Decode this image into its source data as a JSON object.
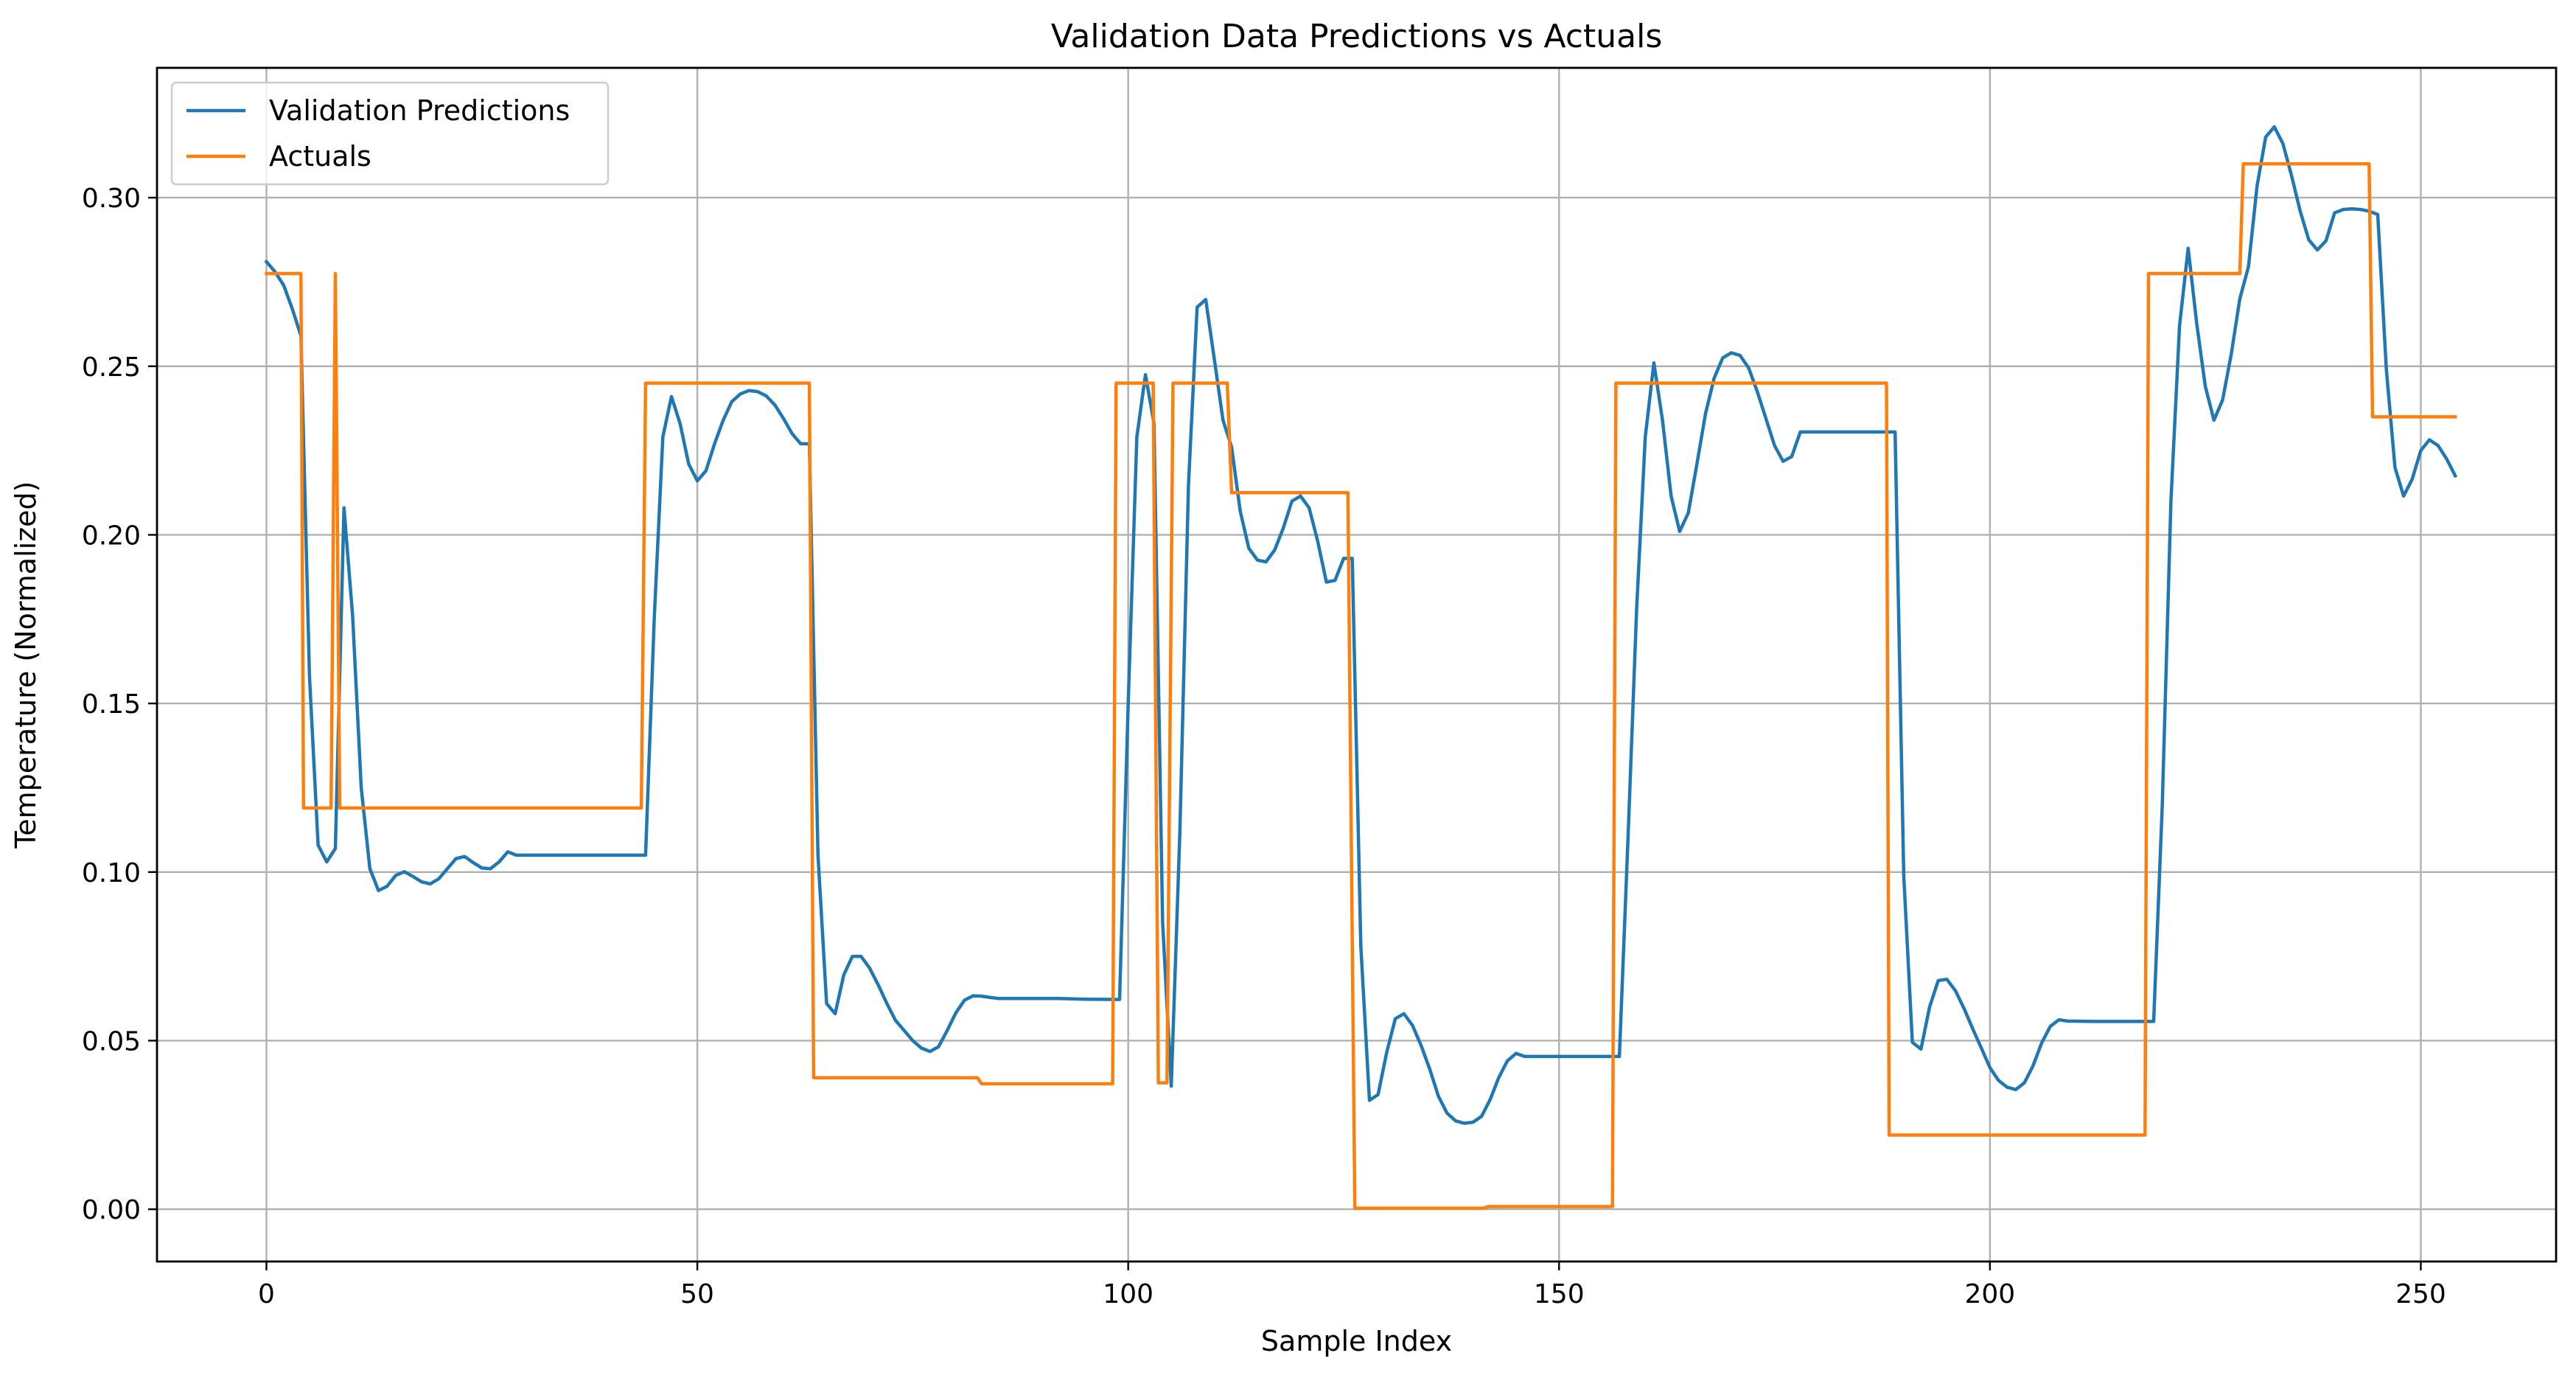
{
  "chart_data": {
    "type": "line",
    "title": "Validation Data Predictions vs Actuals",
    "xlabel": "Sample Index",
    "ylabel": "Temperature (Normalized)",
    "xlim": [
      -12.7,
      265.7
    ],
    "ylim": [
      -0.0155,
      0.3385
    ],
    "xticks": [
      0,
      50,
      100,
      150,
      200,
      250
    ],
    "xtick_labels": [
      "0",
      "50",
      "100",
      "150",
      "200",
      "250"
    ],
    "yticks": [
      0.0,
      0.05,
      0.1,
      0.15,
      0.2,
      0.25,
      0.3
    ],
    "ytick_labels": [
      "0.00",
      "0.05",
      "0.10",
      "0.15",
      "0.20",
      "0.25",
      "0.30"
    ],
    "grid": true,
    "legend_position": "top-left",
    "series": [
      {
        "name": "Validation Predictions",
        "color": "#1f77b4",
        "points": [
          [
            0,
            0.281
          ],
          [
            1,
            0.278
          ],
          [
            2,
            0.274
          ],
          [
            3,
            0.267
          ],
          [
            4,
            0.259
          ],
          [
            5,
            0.158
          ],
          [
            6,
            0.108
          ],
          [
            7,
            0.103
          ],
          [
            8,
            0.107
          ],
          [
            9,
            0.208
          ],
          [
            10,
            0.176
          ],
          [
            11,
            0.125
          ],
          [
            12,
            0.101
          ],
          [
            13,
            0.0945
          ],
          [
            14,
            0.0958
          ],
          [
            15,
            0.099
          ],
          [
            16,
            0.1001
          ],
          [
            17,
            0.0987
          ],
          [
            18,
            0.0971
          ],
          [
            19,
            0.0965
          ],
          [
            20,
            0.098
          ],
          [
            21,
            0.101
          ],
          [
            22,
            0.104
          ],
          [
            23,
            0.1046
          ],
          [
            24,
            0.1028
          ],
          [
            25,
            0.1012
          ],
          [
            26,
            0.101
          ],
          [
            27,
            0.103
          ],
          [
            28,
            0.106
          ],
          [
            29,
            0.105
          ],
          [
            30,
            0.105
          ],
          [
            35,
            0.105
          ],
          [
            40,
            0.105
          ],
          [
            44,
            0.105
          ],
          [
            45,
            0.175
          ],
          [
            46,
            0.229
          ],
          [
            47,
            0.241
          ],
          [
            48,
            0.233
          ],
          [
            49,
            0.221
          ],
          [
            50,
            0.216
          ],
          [
            51,
            0.219
          ],
          [
            52,
            0.227
          ],
          [
            53,
            0.234
          ],
          [
            54,
            0.2395
          ],
          [
            55,
            0.2418
          ],
          [
            56,
            0.2428
          ],
          [
            57,
            0.2425
          ],
          [
            58,
            0.2412
          ],
          [
            59,
            0.2385
          ],
          [
            60,
            0.2345
          ],
          [
            61,
            0.23
          ],
          [
            62,
            0.227
          ],
          [
            63,
            0.227
          ],
          [
            64,
            0.105
          ],
          [
            65,
            0.061
          ],
          [
            66,
            0.058
          ],
          [
            67,
            0.0695
          ],
          [
            68,
            0.075
          ],
          [
            69,
            0.075
          ],
          [
            70,
            0.0715
          ],
          [
            71,
            0.0665
          ],
          [
            72,
            0.061
          ],
          [
            73,
            0.056
          ],
          [
            74,
            0.053
          ],
          [
            75,
            0.05
          ],
          [
            76,
            0.0478
          ],
          [
            77,
            0.0468
          ],
          [
            78,
            0.0482
          ],
          [
            79,
            0.053
          ],
          [
            80,
            0.0582
          ],
          [
            81,
            0.062
          ],
          [
            82,
            0.0633
          ],
          [
            83,
            0.0632
          ],
          [
            84,
            0.0628
          ],
          [
            85,
            0.0625
          ],
          [
            88,
            0.0625
          ],
          [
            92,
            0.0625
          ],
          [
            95,
            0.0623
          ],
          [
            99,
            0.0622
          ],
          [
            100,
            0.15
          ],
          [
            101,
            0.229
          ],
          [
            102,
            0.2475
          ],
          [
            103,
            0.233
          ],
          [
            104,
            0.085
          ],
          [
            105,
            0.0365
          ],
          [
            106,
            0.112
          ],
          [
            107,
            0.215
          ],
          [
            108,
            0.2675
          ],
          [
            109,
            0.2698
          ],
          [
            110,
            0.252
          ],
          [
            111,
            0.234
          ],
          [
            112,
            0.226
          ],
          [
            113,
            0.207
          ],
          [
            114,
            0.196
          ],
          [
            115,
            0.1925
          ],
          [
            116,
            0.192
          ],
          [
            117,
            0.1955
          ],
          [
            118,
            0.202
          ],
          [
            119,
            0.21
          ],
          [
            120,
            0.2115
          ],
          [
            121,
            0.208
          ],
          [
            122,
            0.198
          ],
          [
            123,
            0.186
          ],
          [
            124,
            0.1865
          ],
          [
            125,
            0.193
          ],
          [
            126,
            0.193
          ],
          [
            127,
            0.078
          ],
          [
            128,
            0.0323
          ],
          [
            129,
            0.034
          ],
          [
            130,
            0.0465
          ],
          [
            131,
            0.0565
          ],
          [
            132,
            0.058
          ],
          [
            133,
            0.0545
          ],
          [
            134,
            0.0485
          ],
          [
            135,
            0.0415
          ],
          [
            136,
            0.0335
          ],
          [
            137,
            0.0285
          ],
          [
            138,
            0.0262
          ],
          [
            139,
            0.0255
          ],
          [
            140,
            0.0258
          ],
          [
            141,
            0.0275
          ],
          [
            142,
            0.0325
          ],
          [
            143,
            0.039
          ],
          [
            144,
            0.044
          ],
          [
            145,
            0.0462
          ],
          [
            146,
            0.0453
          ],
          [
            150,
            0.0453
          ],
          [
            157,
            0.0453
          ],
          [
            158,
            0.11
          ],
          [
            159,
            0.178
          ],
          [
            160,
            0.229
          ],
          [
            161,
            0.251
          ],
          [
            162,
            0.234
          ],
          [
            163,
            0.2115
          ],
          [
            164,
            0.201
          ],
          [
            165,
            0.2065
          ],
          [
            166,
            0.221
          ],
          [
            167,
            0.236
          ],
          [
            168,
            0.2465
          ],
          [
            169,
            0.2525
          ],
          [
            170,
            0.254
          ],
          [
            171,
            0.2532
          ],
          [
            172,
            0.2495
          ],
          [
            173,
            0.2425
          ],
          [
            174,
            0.2345
          ],
          [
            175,
            0.2265
          ],
          [
            176,
            0.2218
          ],
          [
            177,
            0.2232
          ],
          [
            178,
            0.2305
          ],
          [
            180,
            0.2305
          ],
          [
            185,
            0.2305
          ],
          [
            189,
            0.2305
          ],
          [
            190,
            0.099
          ],
          [
            191,
            0.0495
          ],
          [
            192,
            0.0475
          ],
          [
            193,
            0.06
          ],
          [
            194,
            0.0678
          ],
          [
            195,
            0.0682
          ],
          [
            196,
            0.0648
          ],
          [
            197,
            0.0595
          ],
          [
            198,
            0.0535
          ],
          [
            199,
            0.0478
          ],
          [
            200,
            0.042
          ],
          [
            201,
            0.0382
          ],
          [
            202,
            0.0362
          ],
          [
            203,
            0.0355
          ],
          [
            204,
            0.0375
          ],
          [
            205,
            0.0425
          ],
          [
            206,
            0.0493
          ],
          [
            207,
            0.0542
          ],
          [
            208,
            0.0562
          ],
          [
            209,
            0.0558
          ],
          [
            212,
            0.0557
          ],
          [
            216,
            0.0557
          ],
          [
            219,
            0.0557
          ],
          [
            220,
            0.12
          ],
          [
            221,
            0.21
          ],
          [
            222,
            0.262
          ],
          [
            223,
            0.285
          ],
          [
            224,
            0.2625
          ],
          [
            225,
            0.244
          ],
          [
            226,
            0.234
          ],
          [
            227,
            0.24
          ],
          [
            228,
            0.2535
          ],
          [
            229,
            0.27
          ],
          [
            230,
            0.2795
          ],
          [
            231,
            0.3035
          ],
          [
            232,
            0.318
          ],
          [
            233,
            0.321
          ],
          [
            234,
            0.316
          ],
          [
            235,
            0.3065
          ],
          [
            236,
            0.296
          ],
          [
            237,
            0.2875
          ],
          [
            238,
            0.2845
          ],
          [
            239,
            0.2872
          ],
          [
            240,
            0.2955
          ],
          [
            241,
            0.2965
          ],
          [
            242,
            0.2967
          ],
          [
            243,
            0.2965
          ],
          [
            244,
            0.296
          ],
          [
            245,
            0.295
          ],
          [
            246,
            0.249
          ],
          [
            247,
            0.22
          ],
          [
            248,
            0.2115
          ],
          [
            249,
            0.2165
          ],
          [
            250,
            0.225
          ],
          [
            251,
            0.2282
          ],
          [
            252,
            0.2265
          ],
          [
            253,
            0.2225
          ],
          [
            254,
            0.2175
          ]
        ]
      },
      {
        "name": "Actuals",
        "color": "#ff7f0e",
        "points": [
          [
            0,
            0.2775
          ],
          [
            3,
            0.2775
          ],
          [
            4,
            0.2775
          ],
          [
            4.3,
            0.119
          ],
          [
            7.5,
            0.119
          ],
          [
            8,
            0.2775
          ],
          [
            8.5,
            0.119
          ],
          [
            9.5,
            0.119
          ],
          [
            20,
            0.119
          ],
          [
            43,
            0.119
          ],
          [
            43.5,
            0.119
          ],
          [
            44,
            0.245
          ],
          [
            52,
            0.245
          ],
          [
            62.5,
            0.245
          ],
          [
            63,
            0.245
          ],
          [
            63.5,
            0.039
          ],
          [
            70,
            0.039
          ],
          [
            82,
            0.039
          ],
          [
            82.5,
            0.039
          ],
          [
            83,
            0.0372
          ],
          [
            90,
            0.0372
          ],
          [
            98.2,
            0.0372
          ],
          [
            98.6,
            0.245
          ],
          [
            101,
            0.245
          ],
          [
            102.5,
            0.245
          ],
          [
            102.9,
            0.245
          ],
          [
            103.5,
            0.0375
          ],
          [
            104.5,
            0.0375
          ],
          [
            105.2,
            0.245
          ],
          [
            111,
            0.245
          ],
          [
            111.5,
            0.245
          ],
          [
            112,
            0.2125
          ],
          [
            119,
            0.2125
          ],
          [
            125,
            0.2125
          ],
          [
            125.5,
            0.2125
          ],
          [
            126.3,
            0.0003
          ],
          [
            135,
            0.0003
          ],
          [
            141.2,
            0.0003
          ],
          [
            141.8,
            0.0008
          ],
          [
            150,
            0.0008
          ],
          [
            156.2,
            0.0008
          ],
          [
            156.6,
            0.245
          ],
          [
            170,
            0.245
          ],
          [
            187.5,
            0.245
          ],
          [
            188,
            0.245
          ],
          [
            188.3,
            0.022
          ],
          [
            200,
            0.022
          ],
          [
            217.5,
            0.022
          ],
          [
            218,
            0.022
          ],
          [
            218.4,
            0.2775
          ],
          [
            223,
            0.2775
          ],
          [
            228.5,
            0.2775
          ],
          [
            229,
            0.2775
          ],
          [
            229.4,
            0.31
          ],
          [
            236,
            0.31
          ],
          [
            243.5,
            0.31
          ],
          [
            244,
            0.31
          ],
          [
            244.4,
            0.235
          ],
          [
            250,
            0.235
          ],
          [
            254,
            0.235
          ]
        ]
      }
    ]
  }
}
